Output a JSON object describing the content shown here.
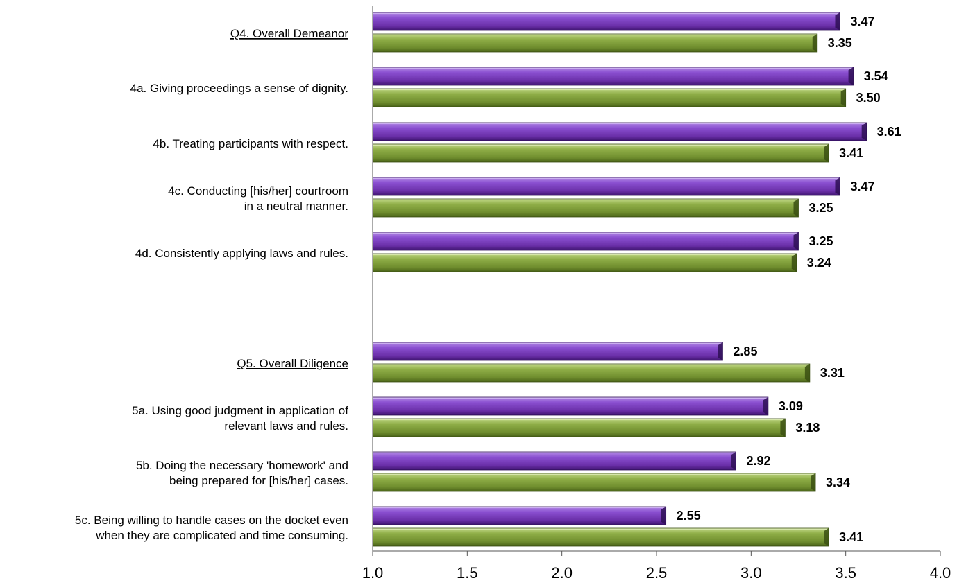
{
  "chart_data": {
    "type": "bar",
    "orientation": "horizontal",
    "xlim": [
      1.0,
      4.0
    ],
    "xticks": [
      "1.0",
      "1.5",
      "2.0",
      "2.5",
      "3.0",
      "3.5",
      "4.0"
    ],
    "grid": false,
    "legend": "none",
    "colors": {
      "series_a": "#7b3fb8",
      "series_b": "#7d9a3a"
    },
    "groups": [
      {
        "lines": [
          "Q4. Overall Demeanor"
        ],
        "underline": true,
        "values": [
          3.47,
          3.35
        ],
        "labels": [
          "3.47",
          "3.35"
        ]
      },
      {
        "lines": [
          "4a. Giving proceedings a sense of dignity."
        ],
        "underline": false,
        "values": [
          3.54,
          3.5
        ],
        "labels": [
          "3.54",
          "3.50"
        ]
      },
      {
        "lines": [
          "4b. Treating participants with respect."
        ],
        "underline": false,
        "values": [
          3.61,
          3.41
        ],
        "labels": [
          "3.61",
          "3.41"
        ]
      },
      {
        "lines": [
          "4c. Conducting [his/her] courtroom",
          "in a neutral manner."
        ],
        "underline": false,
        "values": [
          3.47,
          3.25
        ],
        "labels": [
          "3.47",
          "3.25"
        ]
      },
      {
        "lines": [
          "4d. Consistently applying laws and rules."
        ],
        "underline": false,
        "values": [
          3.25,
          3.24
        ],
        "labels": [
          "3.25",
          "3.24"
        ]
      },
      {
        "lines": [
          "Q5.  Overall Diligence"
        ],
        "underline": true,
        "values": [
          2.85,
          3.31
        ],
        "labels": [
          "2.85",
          "3.31"
        ]
      },
      {
        "lines": [
          "5a. Using good judgment in application of",
          "relevant laws and rules."
        ],
        "underline": false,
        "values": [
          3.09,
          3.18
        ],
        "labels": [
          "3.09",
          "3.18"
        ]
      },
      {
        "lines": [
          "5b. Doing the necessary 'homework' and",
          "being prepared for [his/her] cases."
        ],
        "underline": false,
        "values": [
          2.92,
          3.34
        ],
        "labels": [
          "2.92",
          "3.34"
        ]
      },
      {
        "lines": [
          "5c. Being willing to handle cases on the docket even",
          "when they are complicated and time consuming."
        ],
        "underline": false,
        "values": [
          2.55,
          3.41
        ],
        "labels": [
          "2.55",
          "3.41"
        ]
      }
    ]
  }
}
